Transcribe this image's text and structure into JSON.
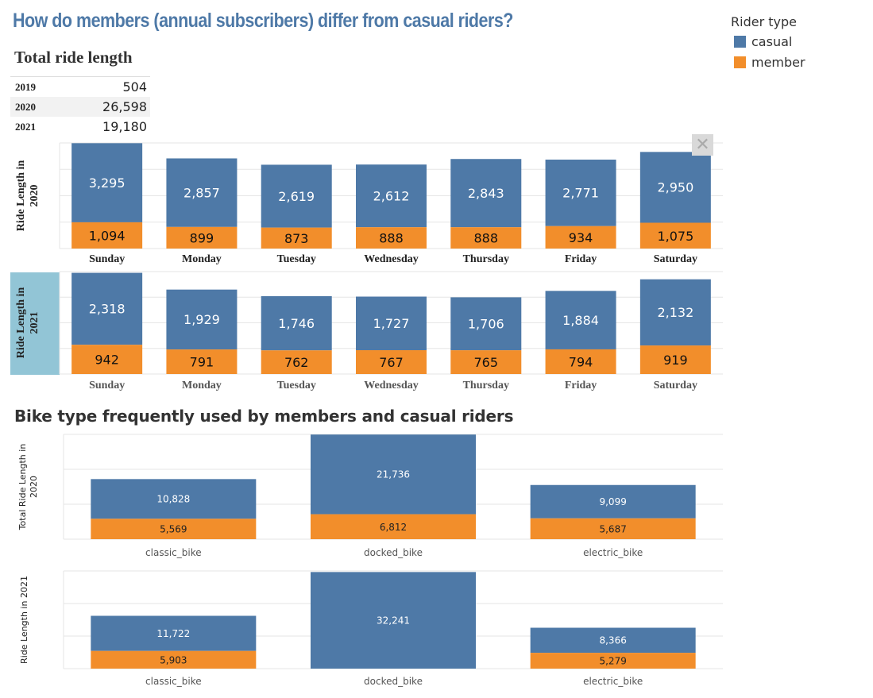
{
  "page": {
    "title": "How do members (annual subscribers) differ from casual riders?"
  },
  "legend": {
    "title": "Rider type",
    "items": [
      {
        "label": "casual",
        "color": "#4e79a7"
      },
      {
        "label": "member",
        "color": "#f28e2b"
      }
    ]
  },
  "totals": {
    "title": "Total ride length",
    "rows": [
      {
        "year": "2019",
        "value": "504"
      },
      {
        "year": "2020",
        "value": "26,598"
      },
      {
        "year": "2021",
        "value": "19,180"
      }
    ]
  },
  "bike_section": {
    "title": "Bike type frequently used by members and casual riders"
  },
  "toolbar": {
    "close_icon": "close-icon"
  },
  "colors": {
    "casual": "#4e79a7",
    "member": "#f28e2b",
    "highlight": "#92c5d6"
  },
  "chart_data": [
    {
      "type": "bar",
      "stacked": true,
      "ylabel": "Ride Length in 2020",
      "categories": [
        "Sunday",
        "Monday",
        "Tuesday",
        "Wednesday",
        "Thursday",
        "Friday",
        "Saturday"
      ],
      "series": [
        {
          "name": "casual",
          "values": [
            3295,
            2857,
            2619,
            2612,
            2843,
            2771,
            2950
          ]
        },
        {
          "name": "member",
          "values": [
            1094,
            899,
            873,
            888,
            888,
            934,
            1075
          ]
        }
      ],
      "ylim": [
        0,
        4400
      ],
      "grid": true
    },
    {
      "type": "bar",
      "stacked": true,
      "ylabel": "Ride Length in 2021",
      "highlighted": true,
      "categories": [
        "Sunday",
        "Monday",
        "Tuesday",
        "Wednesday",
        "Thursday",
        "Friday",
        "Saturday"
      ],
      "series": [
        {
          "name": "casual",
          "values": [
            2318,
            1929,
            1746,
            1727,
            1706,
            1884,
            2132
          ]
        },
        {
          "name": "member",
          "values": [
            942,
            791,
            762,
            767,
            765,
            794,
            919
          ]
        }
      ],
      "ylim": [
        0,
        3300
      ],
      "grid": true
    },
    {
      "type": "bar",
      "stacked": true,
      "ylabel": "Total Ride Length in 2020",
      "categories": [
        "classic_bike",
        "docked_bike",
        "electric_bike"
      ],
      "series": [
        {
          "name": "casual",
          "values": [
            10828,
            21736,
            9099
          ]
        },
        {
          "name": "member",
          "values": [
            5569,
            6812,
            5687
          ]
        }
      ],
      "ylim": [
        0,
        28600
      ],
      "grid": true
    },
    {
      "type": "bar",
      "stacked": true,
      "ylabel": "Ride Length in 2021",
      "categories": [
        "classic_bike",
        "docked_bike",
        "electric_bike"
      ],
      "series": [
        {
          "name": "casual",
          "values": [
            11722,
            32241,
            8366
          ]
        },
        {
          "name": "member",
          "values": [
            5903,
            0,
            5279
          ]
        }
      ],
      "ylim": [
        0,
        32600
      ],
      "grid": true
    }
  ]
}
